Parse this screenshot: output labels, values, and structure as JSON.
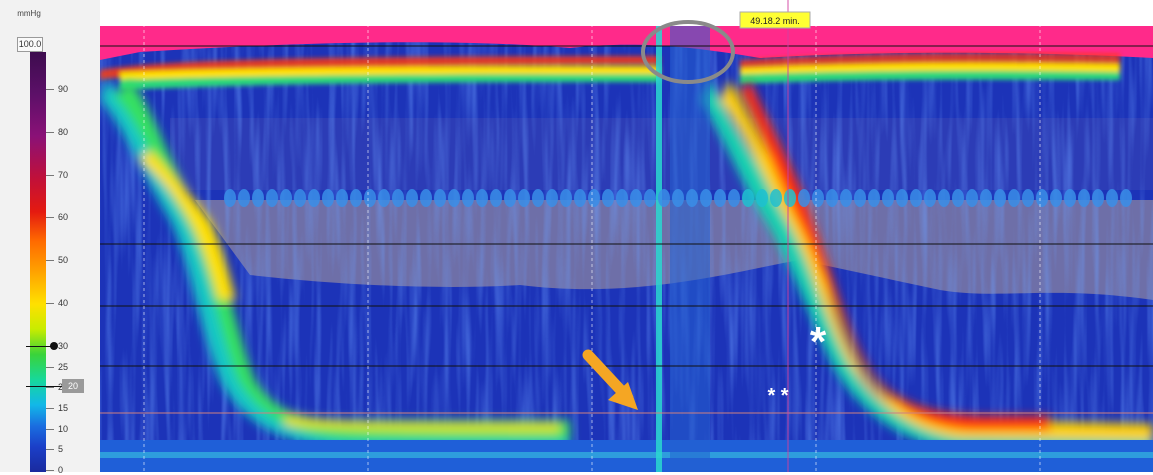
{
  "chart_data": {
    "type": "heatmap",
    "title": "",
    "unit": "mmHg",
    "scale_max_box": "100.0",
    "scale_ticks": [
      "90",
      "80",
      "70",
      "60",
      "50",
      "40",
      "30",
      "25",
      "20",
      "15",
      "10",
      "5",
      "0"
    ],
    "scale_tick_values": [
      90,
      80,
      70,
      60,
      50,
      40,
      30,
      25,
      20,
      15,
      10,
      5,
      0
    ],
    "highlight_markers": [
      {
        "value": 30,
        "style": "dot"
      },
      {
        "value": 20,
        "style": "box",
        "label": "20"
      }
    ],
    "time_label": "49.18.2 min.",
    "colormap": [
      "#1a2a9e",
      "#1b3fc8",
      "#1a6ee0",
      "#12b8e8",
      "#17d89a",
      "#3ad33a",
      "#c8ec00",
      "#ffe000",
      "#ffa000",
      "#ff6a00",
      "#e41a10",
      "#c0103a",
      "#8a1177",
      "#5c1068",
      "#3d0c4e"
    ],
    "background_low_color": "#6e6fa8",
    "top_band_color": "#ff2a8a",
    "annotations": [
      {
        "type": "arrow",
        "color": "#f5a623",
        "meaning": "pointer"
      },
      {
        "type": "ellipse",
        "color": "#8a8a8a",
        "meaning": "highlight"
      },
      {
        "type": "text",
        "text": "*",
        "color": "#ffffff"
      },
      {
        "type": "text",
        "text": "* *",
        "color": "#ffffff"
      }
    ]
  },
  "ui": {
    "unit_label": "mmHg",
    "max_box": "100.0",
    "marker_20_label": "20",
    "time_badge": "49.18.2 min.",
    "star_single": "*",
    "star_double": "* *"
  }
}
